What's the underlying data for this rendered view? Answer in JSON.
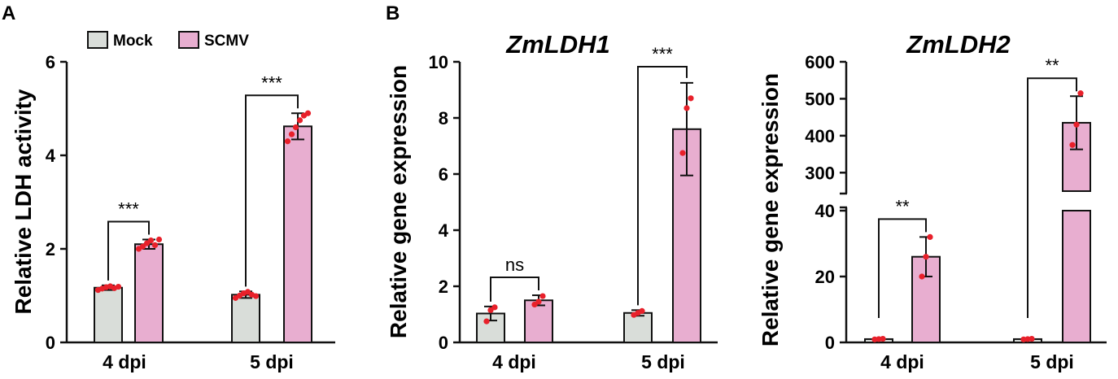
{
  "panels": {
    "a": "A",
    "b": "B"
  },
  "legend": {
    "mock": "Mock",
    "scmv": "SCMV"
  },
  "colors": {
    "mock": "#d9ddd9",
    "scmv": "#e8aed0",
    "dot": "#e8202a",
    "stroke": "#111111"
  },
  "chart_data": [
    {
      "type": "bar",
      "title": "",
      "xlabel": "",
      "ylabel": "Relative LDH activity",
      "ylim": [
        0,
        6
      ],
      "yticks": [
        0,
        2,
        4,
        6
      ],
      "categories": [
        "4 dpi",
        "5 dpi"
      ],
      "series": [
        {
          "name": "Mock",
          "values": [
            1.17,
            1.02
          ],
          "errors": [
            0.05,
            0.07
          ],
          "points": [
            [
              1.12,
              1.15,
              1.18,
              1.2,
              1.16,
              1.19
            ],
            [
              0.95,
              1.0,
              1.05,
              1.08,
              1.02,
              0.99
            ]
          ]
        },
        {
          "name": "SCMV",
          "values": [
            2.1,
            4.62
          ],
          "errors": [
            0.1,
            0.28
          ],
          "points": [
            [
              2.0,
              2.05,
              2.12,
              2.18,
              2.08,
              2.2
            ],
            [
              4.3,
              4.45,
              4.6,
              4.75,
              4.85,
              4.9
            ]
          ]
        }
      ],
      "significance": [
        "***",
        "***"
      ],
      "legend": "top-left"
    },
    {
      "type": "bar",
      "title": "ZmLDH1",
      "xlabel": "",
      "ylabel": "Relative gene expression",
      "ylim": [
        0,
        10
      ],
      "yticks": [
        0,
        2,
        4,
        6,
        8,
        10
      ],
      "categories": [
        "4 dpi",
        "5 dpi"
      ],
      "series": [
        {
          "name": "Mock",
          "values": [
            1.03,
            1.05
          ],
          "errors": [
            0.25,
            0.1
          ],
          "points": [
            [
              0.75,
              1.15,
              1.25
            ],
            [
              0.98,
              1.05,
              1.12
            ]
          ]
        },
        {
          "name": "SCMV",
          "values": [
            1.5,
            7.6
          ],
          "errors": [
            0.18,
            1.65
          ],
          "points": [
            [
              1.35,
              1.45,
              1.65
            ],
            [
              6.75,
              8.35,
              8.7
            ]
          ]
        }
      ],
      "significance": [
        "ns",
        "***"
      ]
    },
    {
      "type": "bar",
      "title": "ZmLDH2",
      "xlabel": "",
      "ylabel": "Relative gene expression",
      "ylim": [
        0,
        600
      ],
      "broken_axis": {
        "lower": [
          0,
          40
        ],
        "upper": [
          250,
          600
        ]
      },
      "yticks": [
        0,
        20,
        40,
        300,
        400,
        500,
        600
      ],
      "categories": [
        "4 dpi",
        "5 dpi"
      ],
      "series": [
        {
          "name": "Mock",
          "values": [
            1.0,
            1.0
          ],
          "errors": [
            0.2,
            0.2
          ],
          "points": [
            [
              0.9,
              1.0,
              1.1
            ],
            [
              0.9,
              1.0,
              1.1
            ]
          ]
        },
        {
          "name": "SCMV",
          "values": [
            26,
            435
          ],
          "errors": [
            6,
            72
          ],
          "points": [
            [
              20,
              26,
              32
            ],
            [
              375,
              430,
              515
            ]
          ]
        }
      ],
      "significance": [
        "**",
        "**"
      ]
    }
  ]
}
